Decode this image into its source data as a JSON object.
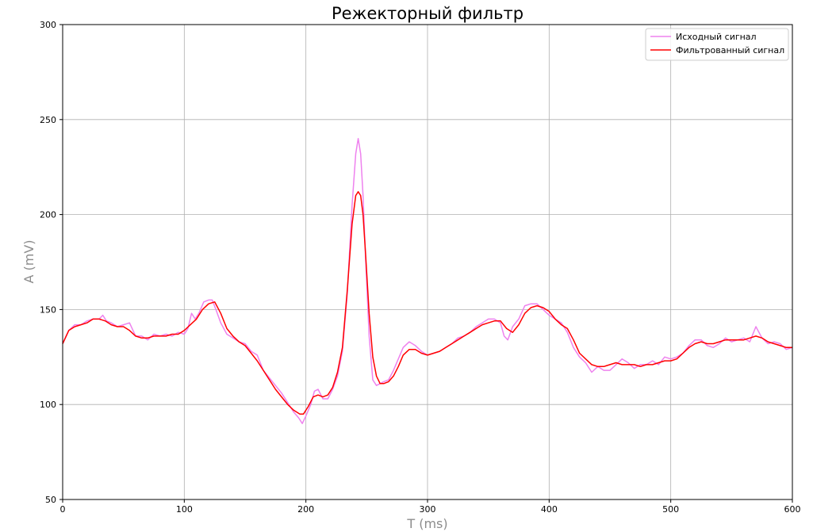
{
  "chart_data": {
    "type": "line",
    "title": "Режекторный фильтр",
    "xlabel": "T (ms)",
    "ylabel": "A (mV)",
    "xlim": [
      0,
      600
    ],
    "ylim": [
      50,
      300
    ],
    "xticks": [
      "0",
      "100",
      "200",
      "300",
      "400",
      "500",
      "600"
    ],
    "yticks": [
      "50",
      "100",
      "150",
      "200",
      "250",
      "300"
    ],
    "grid": true,
    "legend_position": "top-right",
    "series": [
      {
        "name": "Исходный сигнал",
        "color": "#ee82ee",
        "x": [
          0,
          5,
          10,
          15,
          20,
          25,
          30,
          33,
          36,
          40,
          45,
          50,
          55,
          60,
          65,
          70,
          75,
          80,
          85,
          90,
          95,
          100,
          103,
          106,
          109,
          112,
          116,
          120,
          123,
          126,
          130,
          135,
          140,
          145,
          150,
          155,
          160,
          165,
          170,
          175,
          180,
          185,
          190,
          194,
          197,
          200,
          204,
          207,
          210,
          214,
          218,
          222,
          226,
          230,
          234,
          238,
          241,
          243,
          245,
          247,
          249,
          252,
          255,
          258,
          261,
          264,
          268,
          272,
          276,
          280,
          285,
          290,
          295,
          300,
          305,
          310,
          315,
          320,
          325,
          330,
          335,
          340,
          345,
          350,
          355,
          360,
          363,
          366,
          370,
          375,
          380,
          385,
          390,
          395,
          400,
          405,
          410,
          415,
          420,
          425,
          430,
          435,
          440,
          445,
          450,
          455,
          460,
          465,
          470,
          475,
          480,
          485,
          490,
          495,
          500,
          505,
          510,
          515,
          520,
          525,
          530,
          535,
          540,
          545,
          550,
          555,
          560,
          565,
          570,
          575,
          580,
          585,
          590,
          595,
          600
        ],
        "values": [
          132,
          139,
          142,
          142,
          144,
          145,
          145,
          147,
          144,
          143,
          141,
          142,
          143,
          136,
          136,
          134,
          137,
          136,
          137,
          136,
          138,
          137,
          140,
          148,
          145,
          148,
          154,
          155,
          155,
          150,
          143,
          137,
          135,
          133,
          132,
          128,
          126,
          118,
          114,
          110,
          106,
          101,
          96,
          93,
          90,
          94,
          100,
          107,
          108,
          103,
          103,
          108,
          115,
          128,
          158,
          205,
          232,
          240,
          232,
          210,
          178,
          136,
          113,
          110,
          111,
          112,
          113,
          118,
          124,
          130,
          133,
          131,
          128,
          126,
          127,
          128,
          130,
          132,
          135,
          136,
          138,
          141,
          143,
          145,
          145,
          143,
          136,
          134,
          141,
          145,
          152,
          153,
          153,
          150,
          147,
          145,
          143,
          138,
          130,
          125,
          122,
          117,
          120,
          118,
          118,
          121,
          124,
          122,
          119,
          121,
          121,
          123,
          121,
          125,
          124,
          125,
          127,
          131,
          134,
          134,
          131,
          130,
          132,
          135,
          133,
          134,
          135,
          133,
          141,
          135,
          132,
          133,
          132,
          129,
          130
        ]
      },
      {
        "name": "Фильтрованный сигнал",
        "color": "#ff0000",
        "x": [
          0,
          5,
          10,
          15,
          20,
          25,
          30,
          35,
          40,
          45,
          50,
          55,
          60,
          65,
          70,
          75,
          80,
          85,
          90,
          95,
          100,
          105,
          110,
          115,
          120,
          125,
          130,
          135,
          140,
          145,
          150,
          155,
          160,
          165,
          170,
          175,
          180,
          185,
          190,
          195,
          198,
          202,
          206,
          210,
          214,
          218,
          222,
          226,
          230,
          234,
          238,
          241,
          243,
          245,
          247,
          249,
          252,
          255,
          258,
          261,
          264,
          268,
          272,
          276,
          280,
          285,
          290,
          295,
          300,
          305,
          310,
          315,
          320,
          325,
          330,
          335,
          340,
          345,
          350,
          355,
          360,
          365,
          370,
          375,
          380,
          385,
          390,
          395,
          400,
          405,
          410,
          415,
          420,
          425,
          430,
          435,
          440,
          445,
          450,
          455,
          460,
          465,
          470,
          475,
          480,
          485,
          490,
          495,
          500,
          505,
          510,
          515,
          520,
          525,
          530,
          535,
          540,
          545,
          550,
          555,
          560,
          565,
          570,
          575,
          580,
          585,
          590,
          595,
          600
        ],
        "values": [
          132,
          139,
          141,
          142,
          143,
          145,
          145,
          144,
          142,
          141,
          141,
          139,
          136,
          135,
          135,
          136,
          136,
          136,
          137,
          137,
          139,
          142,
          145,
          150,
          153,
          154,
          148,
          140,
          136,
          133,
          131,
          127,
          123,
          118,
          113,
          108,
          104,
          100,
          97,
          95,
          95,
          99,
          104,
          105,
          104,
          105,
          109,
          117,
          130,
          160,
          195,
          210,
          212,
          210,
          200,
          180,
          148,
          125,
          115,
          111,
          111,
          112,
          115,
          120,
          126,
          129,
          129,
          127,
          126,
          127,
          128,
          130,
          132,
          134,
          136,
          138,
          140,
          142,
          143,
          144,
          144,
          140,
          138,
          142,
          148,
          151,
          152,
          151,
          149,
          145,
          142,
          140,
          134,
          127,
          124,
          121,
          120,
          120,
          121,
          122,
          121,
          121,
          121,
          120,
          121,
          121,
          122,
          123,
          123,
          124,
          127,
          130,
          132,
          133,
          132,
          132,
          133,
          134,
          134,
          134,
          134,
          135,
          136,
          135,
          133,
          132,
          131,
          130,
          130
        ]
      }
    ]
  }
}
